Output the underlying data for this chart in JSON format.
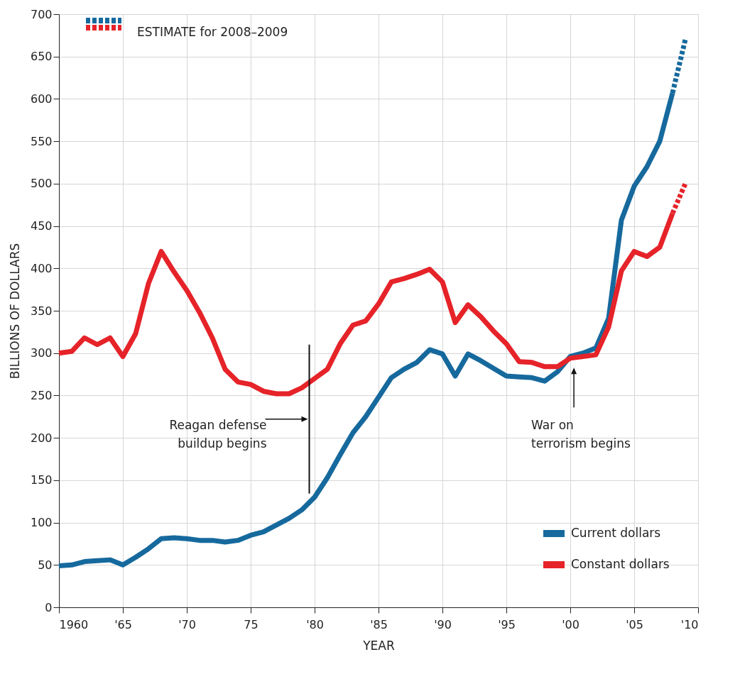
{
  "chart_data": {
    "type": "line",
    "xlabel": "YEAR",
    "ylabel": "BILLIONS OF DOLLARS",
    "xlim": [
      1960,
      2010
    ],
    "ylim": [
      0,
      700
    ],
    "xticks": [
      {
        "value": 1960,
        "label": "1960"
      },
      {
        "value": 1965,
        "label": "'65"
      },
      {
        "value": 1970,
        "label": "'70"
      },
      {
        "value": 1975,
        "label": "75"
      },
      {
        "value": 1980,
        "label": "'80"
      },
      {
        "value": 1985,
        "label": "'85"
      },
      {
        "value": 1990,
        "label": "'90"
      },
      {
        "value": 1995,
        "label": "'95"
      },
      {
        "value": 2000,
        "label": "'00"
      },
      {
        "value": 2005,
        "label": "'05"
      },
      {
        "value": 2010,
        "label": "'10"
      }
    ],
    "yticks": [
      0,
      50,
      100,
      150,
      200,
      250,
      300,
      350,
      400,
      450,
      500,
      550,
      600,
      650,
      700
    ],
    "grid": true,
    "legend": "bottom right",
    "series": [
      {
        "name": "Current dollars",
        "color": "#16699d",
        "line_style": "solid",
        "x": [
          1960,
          1961,
          1962,
          1963,
          1964,
          1965,
          1966,
          1967,
          1968,
          1969,
          1970,
          1971,
          1972,
          1973,
          1974,
          1975,
          1976,
          1977,
          1978,
          1979,
          1980,
          1981,
          1982,
          1983,
          1984,
          1985,
          1986,
          1987,
          1988,
          1989,
          1990,
          1991,
          1992,
          1993,
          1994,
          1995,
          1996,
          1997,
          1998,
          1999,
          2000,
          2001,
          2002,
          2003,
          2004,
          2005,
          2006,
          2007,
          2008
        ],
        "values": [
          49,
          50,
          54,
          55,
          56,
          50,
          59,
          69,
          81,
          82,
          81,
          79,
          79,
          77,
          79,
          85,
          89,
          97,
          105,
          115,
          130,
          153,
          180,
          206,
          225,
          248,
          271,
          281,
          289,
          304,
          299,
          273,
          299,
          291,
          282,
          273,
          272,
          271,
          267,
          278,
          296,
          300,
          306,
          341,
          457,
          497,
          520,
          550,
          607
        ]
      },
      {
        "name": "Constant dollars",
        "color": "#e52329",
        "line_style": "solid",
        "x": [
          1960,
          1961,
          1962,
          1963,
          1964,
          1965,
          1966,
          1967,
          1968,
          1969,
          1970,
          1971,
          1972,
          1973,
          1974,
          1975,
          1976,
          1977,
          1978,
          1979,
          1980,
          1981,
          1982,
          1983,
          1984,
          1985,
          1986,
          1987,
          1988,
          1989,
          1990,
          1991,
          1992,
          1993,
          1994,
          1995,
          1996,
          1997,
          1998,
          1999,
          2000,
          2001,
          2002,
          2003,
          2004,
          2005,
          2006,
          2007,
          2008
        ],
        "values": [
          300,
          302,
          318,
          310,
          318,
          296,
          323,
          382,
          420,
          396,
          374,
          348,
          318,
          281,
          266,
          263,
          255,
          252,
          252,
          259,
          270,
          281,
          311,
          333,
          338,
          358,
          384,
          388,
          393,
          399,
          384,
          336,
          357,
          343,
          326,
          311,
          290,
          289,
          284,
          284,
          294,
          296,
          298,
          331,
          397,
          420,
          414,
          425,
          465
        ]
      },
      {
        "color": "#16699d",
        "line_style": "dashed",
        "x": [
          2008,
          2009
        ],
        "values": [
          607,
          670
        ]
      },
      {
        "color": "#e52329",
        "line_style": "dashed",
        "x": [
          2008,
          2009
        ],
        "values": [
          465,
          500
        ]
      }
    ],
    "annotations": [
      "ESTIMATE for 2008–2009",
      "Reagan defense\nbuildup begins",
      "War on\nterrorism begins"
    ]
  }
}
